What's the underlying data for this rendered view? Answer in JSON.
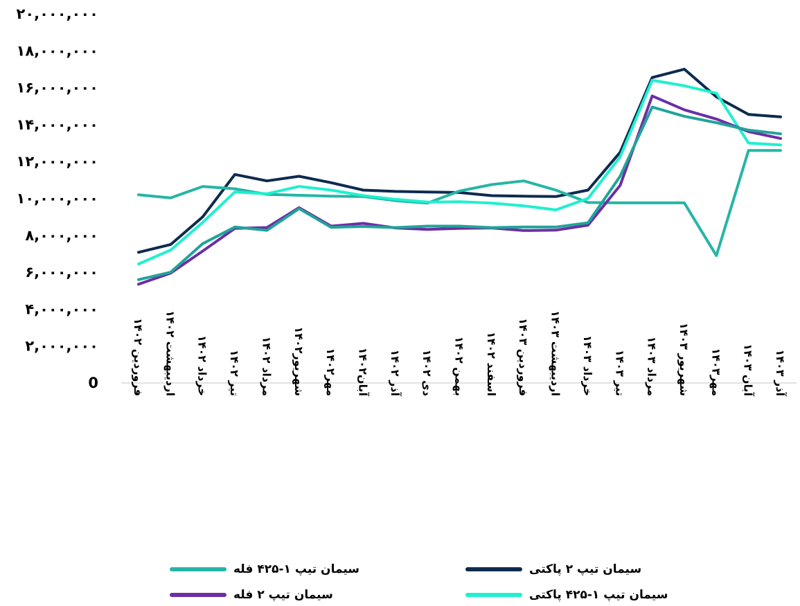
{
  "chart_data": {
    "type": "line",
    "title": "",
    "xlabel": "",
    "ylabel": "",
    "ylim": [
      0,
      20000000
    ],
    "y_ticks": [
      "0",
      "۲,۰۰۰,۰۰۰",
      "۴,۰۰۰,۰۰۰",
      "۶,۰۰۰,۰۰۰",
      "۸,۰۰۰,۰۰۰",
      "۱۰,۰۰۰,۰۰۰",
      "۱۲,۰۰۰,۰۰۰",
      "۱۴,۰۰۰,۰۰۰",
      "۱۶,۰۰۰,۰۰۰",
      "۱۸,۰۰۰,۰۰۰",
      "۲۰,۰۰۰,۰۰۰"
    ],
    "categories": [
      "فروردین ۱۴۰۲",
      "اردیبهشت ۱۴۰۲",
      "خرداد ۱۴۰۲",
      "تیر ۱۴۰۲",
      "مرداد ۱۴۰۲",
      "شهریور۱۴۰۲",
      "مهر۱۴۰۲",
      "آبان۱۴۰۲",
      "آذر ۱۴۰۲",
      "دی ۱۴۰۲",
      "بهمن ۱۴۰۲",
      "اسفند ۱۴۰۲",
      "فروردین ۱۴۰۳",
      "اردیبهشت ۱۴۰۳",
      "خرداد ۱۴۰۳",
      "تیر ۱۴۰۳",
      "مرداد ۱۴۰۳",
      "شهریور ۱۴۰۳",
      "مهر۱۴۰۳",
      "آبان ۱۴۰۳",
      "آذر ۱۴۰۳"
    ],
    "series": [
      {
        "name": "سیمان تیپ ۲ پاکتی",
        "color": "#0d2b4e",
        "values": [
          7080000,
          7500000,
          9000000,
          11300000,
          10950000,
          11200000,
          10850000,
          10450000,
          10380000,
          10350000,
          10320000,
          10150000,
          10120000,
          10100000,
          10450000,
          12500000,
          16550000,
          17000000,
          15500000,
          14550000,
          14420000
        ]
      },
      {
        "name": "سیمان تیپ ۱-۴۲۵ فله",
        "color": "#26b5a5",
        "values": [
          10200000,
          10030000,
          10650000,
          10520000,
          10220000,
          10170000,
          10120000,
          10100000,
          9880000,
          9750000,
          10400000,
          10750000,
          10950000,
          10450000,
          9780000,
          9760000,
          9760000,
          9760000,
          6900000,
          12600000,
          12600000
        ]
      },
      {
        "name": "سیمان تیپ ۱-۴۲۵ پاکتی",
        "color": "#1ff0cf",
        "values": [
          6450000,
          7200000,
          8700000,
          10350000,
          10250000,
          10650000,
          10450000,
          10150000,
          9950000,
          9800000,
          9820000,
          9750000,
          9600000,
          9380000,
          10000000,
          12250000,
          16400000,
          16100000,
          15700000,
          13000000,
          12900000
        ]
      },
      {
        "name": "سیمان تیپ ۲ فله",
        "color": "#6b2fa3",
        "values": [
          5350000,
          5950000,
          7150000,
          8380000,
          8420000,
          9500000,
          8500000,
          8650000,
          8400000,
          8320000,
          8380000,
          8400000,
          8260000,
          8280000,
          8550000,
          10700000,
          15550000,
          14800000,
          14300000,
          13620000,
          13250000
        ]
      },
      {
        "name": "",
        "color": "#22a39a",
        "values": [
          5600000,
          6000000,
          7550000,
          8450000,
          8270000,
          9450000,
          8430000,
          8480000,
          8420000,
          8500000,
          8500000,
          8420000,
          8450000,
          8450000,
          8680000,
          11200000,
          14950000,
          14450000,
          14100000,
          13700000,
          13500000
        ]
      }
    ],
    "legend": [
      {
        "label": "سیمان تیپ ۱-۴۲۵ فله",
        "color": "#26b5a5",
        "pos": "bottom-left-top"
      },
      {
        "label": "سیمان تیپ ۲ پاکتی",
        "color": "#0d2b4e",
        "pos": "bottom-right-top"
      },
      {
        "label": "سیمان تیپ ۲ فله",
        "color": "#6b2fa3",
        "pos": "bottom-left-bottom"
      },
      {
        "label": "سیمان تیپ ۱-۴۲۵ پاکتی",
        "color": "#1ff0cf",
        "pos": "bottom-right-bottom"
      }
    ],
    "grid": false,
    "legend_placement": "bottom"
  }
}
